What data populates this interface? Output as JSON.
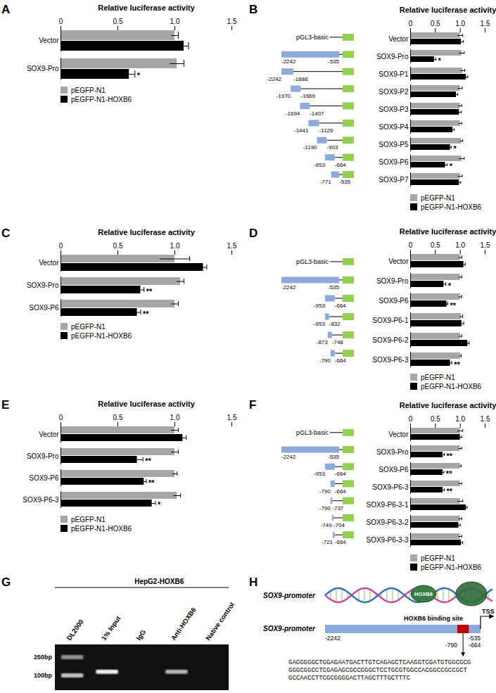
{
  "chart_data": [
    {
      "type": "bar",
      "title": "A",
      "orientation": "horizontal",
      "x_label": "Relative luciferase activity",
      "xlim": [
        0,
        1.5
      ],
      "xticks": [
        0,
        0.5,
        {
          "value": 1,
          "label": "1.0"
        },
        1.5
      ],
      "legend": "bottom",
      "categories": [
        "Vector",
        "SOX9-Pro"
      ],
      "series": [
        {
          "name": "pEGFP-N1",
          "color": "#a6a6a6",
          "values": [
            1.0,
            1.02
          ],
          "errors": [
            0.03,
            0.06
          ]
        },
        {
          "name": "pEGFP-N1-HOXB6",
          "color": "#000000",
          "values": [
            1.08,
            0.6
          ],
          "errors": [
            0.04,
            0.05
          ],
          "significance": [
            null,
            "*"
          ]
        }
      ]
    },
    {
      "type": "bar",
      "title": "B",
      "orientation": "horizontal",
      "x_label": "Relative luciferase activity",
      "xlim": [
        0,
        1.5
      ],
      "xticks": [
        0,
        0.5,
        {
          "value": 1,
          "label": "1.0"
        },
        1.5
      ],
      "legend": "bottom",
      "categories": [
        "Vector",
        "SOX9-Pro",
        "SOX9-P1",
        "SOX9-P2",
        "SOX9-P3",
        "SOX9-P4",
        "SOX9-P5",
        "SOX9-P6",
        "SOX9-P7"
      ],
      "constructs": [
        {
          "label": "pGL3-basic"
        },
        {
          "start": -2242,
          "end": -535
        },
        {
          "start": -2242,
          "end": -1888
        },
        {
          "start": -1970,
          "end": -1669
        },
        {
          "start": -1694,
          "end": -1407
        },
        {
          "start": -1441,
          "end": -1126
        },
        {
          "start": -1190,
          "end": -903
        },
        {
          "start": -953,
          "end": -664
        },
        {
          "start": -771,
          "end": -535
        }
      ],
      "series": [
        {
          "name": "pEGFP-N1",
          "color": "#a6a6a6",
          "values": [
            1.0,
            1.03,
            1.05,
            1.0,
            1.0,
            1.0,
            1.02,
            1.03,
            1.0
          ],
          "errors": [
            0.05,
            0.05,
            0.04,
            0.04,
            0.03,
            0.03,
            0.03,
            0.05,
            0.04
          ]
        },
        {
          "name": "pEGFP-N1-HOXB6",
          "color": "#000000",
          "values": [
            1.02,
            0.48,
            1.12,
            0.92,
            0.98,
            0.85,
            0.8,
            0.7,
            0.98
          ],
          "errors": [
            0.04,
            0.03,
            0.03,
            0.03,
            0.04,
            0.03,
            0.02,
            0.04,
            0.03
          ],
          "significance": [
            null,
            "*",
            null,
            null,
            null,
            null,
            "*",
            "*",
            null
          ]
        }
      ]
    },
    {
      "type": "bar",
      "title": "C",
      "orientation": "horizontal",
      "x_label": "Relative luciferase activity",
      "xlim": [
        0,
        1.5
      ],
      "xticks": [
        0,
        0.5,
        {
          "value": 1,
          "label": "1.0"
        },
        1.5
      ],
      "legend": "bottom",
      "categories": [
        "Vector",
        "SOX9-Pro",
        "SOX9-P6"
      ],
      "series": [
        {
          "name": "pEGFP-N1",
          "color": "#a6a6a6",
          "values": [
            1.0,
            1.05,
            1.0
          ],
          "errors": [
            0.13,
            0.03,
            0.03
          ]
        },
        {
          "name": "pEGFP-N1-HOXB6",
          "color": "#000000",
          "values": [
            1.25,
            0.7,
            0.67
          ],
          "errors": [
            0.03,
            0.03,
            0.03
          ],
          "significance": [
            null,
            "**",
            "**"
          ]
        }
      ]
    },
    {
      "type": "bar",
      "title": "D",
      "orientation": "horizontal",
      "x_label": "Relative luciferase activity",
      "xlim": [
        0,
        1.5
      ],
      "xticks": [
        0,
        0.5,
        {
          "value": 1,
          "label": "1.0"
        },
        1.5
      ],
      "legend": "bottom",
      "categories": [
        "Vector",
        "SOX9-Pro",
        "SOX9-P6",
        "SOX9-P6-1",
        "SOX9-P6-2",
        "SOX9-P6-3"
      ],
      "constructs": [
        {
          "label": "pGL3-basic"
        },
        {
          "start": -2242,
          "end": -535
        },
        {
          "start": -953,
          "end": -664
        },
        {
          "start": -953,
          "end": -832
        },
        {
          "start": -873,
          "end": -748
        },
        {
          "start": -790,
          "end": -664
        }
      ],
      "series": [
        {
          "name": "pEGFP-N1",
          "color": "#a6a6a6",
          "values": [
            1.0,
            1.0,
            1.0,
            1.02,
            1.0,
            1.0
          ],
          "errors": [
            0.03,
            0.03,
            0.03,
            0.03,
            0.03,
            0.02
          ]
        },
        {
          "name": "pEGFP-N1-HOXB6",
          "color": "#000000",
          "values": [
            1.07,
            0.67,
            0.73,
            1.03,
            1.15,
            0.8
          ],
          "errors": [
            0.03,
            0.04,
            0.02,
            0.04,
            0.03,
            0.03
          ],
          "significance": [
            null,
            "*",
            "**",
            null,
            null,
            "**"
          ]
        }
      ]
    },
    {
      "type": "bar",
      "title": "E",
      "orientation": "horizontal",
      "x_label": "Relative luciferase activity",
      "xlim": [
        0,
        1.5
      ],
      "xticks": [
        0,
        0.5,
        {
          "value": 1,
          "label": "1.0"
        },
        1.5
      ],
      "legend": "bottom",
      "categories": [
        "Vector",
        "SOX9-Pro",
        "SOX9-P6",
        "SOX9-P6-3"
      ],
      "series": [
        {
          "name": "pEGFP-N1",
          "color": "#a6a6a6",
          "values": [
            1.0,
            1.0,
            1.0,
            1.02
          ],
          "errors": [
            0.03,
            0.03,
            0.02,
            0.03
          ]
        },
        {
          "name": "pEGFP-N1-HOXB6",
          "color": "#000000",
          "values": [
            1.07,
            0.67,
            0.73,
            0.8
          ],
          "errors": [
            0.03,
            0.05,
            0.02,
            0.03
          ],
          "significance": [
            null,
            "**",
            "**",
            "*"
          ]
        }
      ]
    },
    {
      "type": "bar",
      "title": "F",
      "orientation": "horizontal",
      "x_label": "Relative luciferase activity",
      "xlim": [
        0,
        1.5
      ],
      "xticks": [
        0,
        0.5,
        {
          "value": 1,
          "label": "1.0"
        },
        1.5
      ],
      "legend": "bottom",
      "categories": [
        "Vector",
        "SOX9-Pro",
        "SOX9-P6",
        "SOX9-P6-3",
        "SOX9-P6-3-1",
        "SOX9-P6-3-2",
        "SOX9-P6-3-3"
      ],
      "constructs": [
        {
          "label": "pGL3-basic"
        },
        {
          "start": -2242,
          "end": -535
        },
        {
          "start": -953,
          "end": -664
        },
        {
          "start": -790,
          "end": -664
        },
        {
          "start": -790,
          "end": -737
        },
        {
          "start": -749,
          "end": -704
        },
        {
          "start": -721,
          "end": -664
        }
      ],
      "series": [
        {
          "name": "pEGFP-N1",
          "color": "#a6a6a6",
          "values": [
            1.0,
            1.0,
            1.0,
            1.0,
            1.0,
            1.0,
            1.0
          ],
          "errors": [
            0.05,
            0.03,
            0.02,
            0.03,
            0.05,
            0.03,
            0.03
          ]
        },
        {
          "name": "pEGFP-N1-HOXB6",
          "color": "#000000",
          "values": [
            1.0,
            0.65,
            0.65,
            0.65,
            1.12,
            0.97,
            1.02
          ],
          "errors": [
            0.03,
            0.03,
            0.02,
            0.03,
            0.02,
            0.03,
            0.03
          ],
          "significance": [
            null,
            "**",
            "**",
            "**",
            null,
            null,
            null
          ]
        }
      ]
    }
  ],
  "gel": {
    "title": "G",
    "heading": "HepG2-HOXB6",
    "markers": [
      {
        "value": 250,
        "label": "250bp"
      },
      {
        "value": 100,
        "label": "100bp"
      }
    ],
    "lanes": [
      {
        "label": "DL2000",
        "bands": [
          {
            "size": 250,
            "intensity": 0.55
          },
          {
            "size": 100,
            "intensity": 0.75
          }
        ]
      },
      {
        "label": "1% Input",
        "bands": [
          {
            "size": 120,
            "intensity": 0.95
          }
        ]
      },
      {
        "label": "IgG",
        "bands": []
      },
      {
        "label": "Anti-HOXB6",
        "bands": [
          {
            "size": 120,
            "intensity": 0.7
          }
        ]
      },
      {
        "label": "Native control",
        "bands": []
      }
    ]
  },
  "promoter_diagram": {
    "title": "H",
    "helix_label": "SOX9-promoter",
    "protein_label": "HOXB6",
    "promoter_label": "SOX9-promoter",
    "binding_site_label": "HOXB6 binding site",
    "tss_label": "TSS",
    "promoter_range": [
      -2242,
      -535
    ],
    "binding_site": [
      -790,
      -664
    ],
    "sequence": [
      "GAGGGGGCTGGAGAATGACTTGTCAGAGCTCAAGGTCGATGTGGCGCG",
      "GGGCGGCCTCGAGAGCGCCGGGCTCCTGCGTGGCCACGGCCGCCGCT",
      "GCCAACCTTCGCGGGGACTTAGCTTTGCTTTC"
    ]
  }
}
